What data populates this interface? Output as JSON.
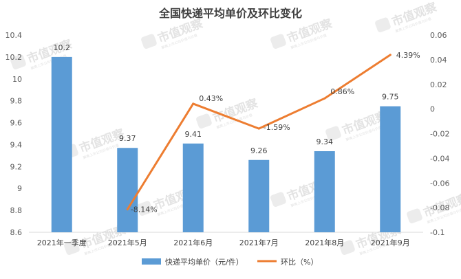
{
  "chart_data": {
    "type": "bar",
    "title": "全国快递平均单价及环比变化",
    "categories": [
      "2021年一季度",
      "2021年5月",
      "2021年6月",
      "2021年7月",
      "2021年8月",
      "2021年9月"
    ],
    "series": [
      {
        "name": "快递平均单价（元/件）",
        "type": "bar",
        "axis": "left",
        "color": "#5b9bd5",
        "values": [
          10.2,
          9.37,
          9.41,
          9.26,
          9.34,
          9.75
        ],
        "labels": [
          "10.2",
          "9.37",
          "9.41",
          "9.26",
          "9.34",
          "9.75"
        ]
      },
      {
        "name": "环比（%）",
        "type": "line",
        "axis": "right",
        "color": "#ed7d31",
        "values": [
          null,
          -0.0814,
          0.0043,
          -0.0159,
          0.0086,
          0.0439
        ],
        "labels": [
          "",
          "-8.14%",
          "0.43%",
          "-1.59%",
          "0.86%",
          "4.39%"
        ]
      }
    ],
    "y_left": {
      "min": 8.6,
      "max": 10.4,
      "ticks": [
        8.6,
        8.8,
        9,
        9.2,
        9.4,
        9.6,
        9.8,
        10,
        10.2,
        10.4
      ],
      "tick_labels": [
        "8.6",
        "8.8",
        "9",
        "9.2",
        "9.4",
        "9.6",
        "9.8",
        "10",
        "10.2",
        "10.4"
      ]
    },
    "y_right": {
      "min": -0.1,
      "max": 0.06,
      "ticks": [
        -0.1,
        -0.08,
        -0.06,
        -0.04,
        -0.02,
        0,
        0.02,
        0.04,
        0.06
      ],
      "tick_labels": [
        "-0.1",
        "-0.08",
        "-0.06",
        "-0.04",
        "-0.02",
        "0",
        "0.02",
        "0.04",
        "0.06"
      ]
    },
    "grid": false,
    "legend_position": "bottom"
  },
  "watermark": {
    "text": "市值观察",
    "subtext": "聚焦上市公司价值与价值"
  }
}
